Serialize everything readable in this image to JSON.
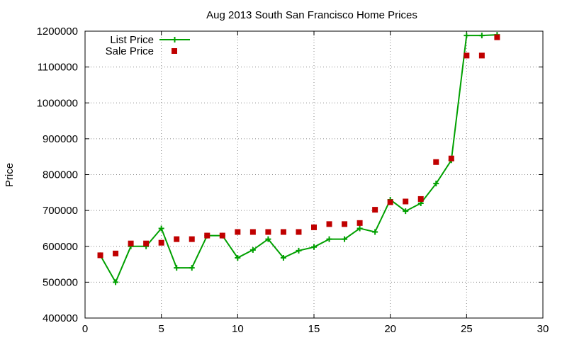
{
  "chart_data": {
    "type": "line",
    "title": "Aug 2013 South San Francisco Home Prices",
    "xlabel": "",
    "ylabel": "Price",
    "xlim": [
      0,
      30
    ],
    "ylim": [
      400000,
      1200000
    ],
    "x_ticks": [
      0,
      5,
      10,
      15,
      20,
      25,
      30
    ],
    "y_ticks": [
      400000,
      500000,
      600000,
      700000,
      800000,
      900000,
      1000000,
      1100000,
      1200000
    ],
    "grid": true,
    "legend_position": "top-left",
    "series": [
      {
        "name": "List Price",
        "style": "line-with-plus-markers",
        "color": "#00a000",
        "x": [
          1,
          2,
          3,
          4,
          5,
          6,
          7,
          8,
          9,
          10,
          11,
          12,
          13,
          14,
          15,
          16,
          17,
          18,
          19,
          20,
          21,
          22,
          23,
          24,
          25,
          26,
          27
        ],
        "y": [
          575000,
          500000,
          600000,
          600000,
          650000,
          540000,
          540000,
          630000,
          630000,
          568000,
          590000,
          620000,
          568000,
          588000,
          598000,
          620000,
          620000,
          650000,
          640000,
          730000,
          698000,
          720000,
          775000,
          840000,
          1188000,
          1188000,
          1190000
        ]
      },
      {
        "name": "Sale Price",
        "style": "square-markers",
        "color": "#c00000",
        "x": [
          1,
          2,
          3,
          4,
          5,
          6,
          7,
          8,
          9,
          10,
          11,
          12,
          13,
          14,
          15,
          16,
          17,
          18,
          19,
          20,
          21,
          22,
          23,
          24,
          25,
          26,
          27
        ],
        "y": [
          575000,
          580000,
          608000,
          608000,
          610000,
          620000,
          620000,
          630000,
          630000,
          640000,
          640000,
          640000,
          640000,
          640000,
          653000,
          662000,
          662000,
          665000,
          702000,
          723000,
          725000,
          732000,
          835000,
          845000,
          1132000,
          1132000,
          1183000
        ]
      }
    ]
  }
}
